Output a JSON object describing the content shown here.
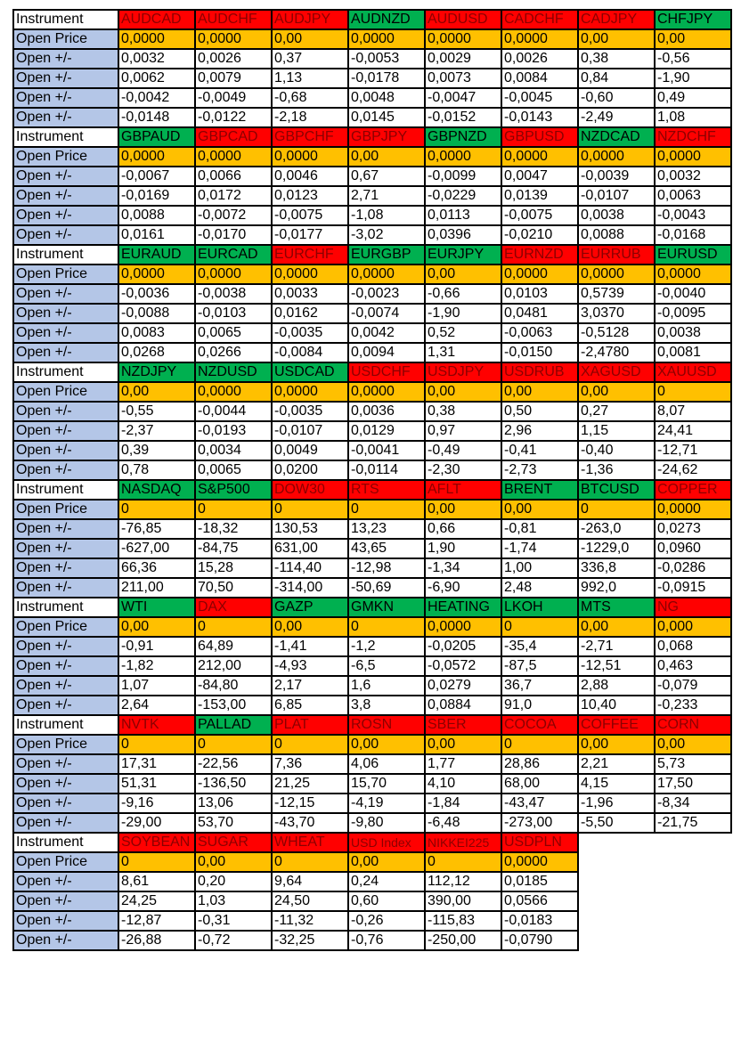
{
  "labels": {
    "instrument": "Instrument",
    "open_price": "Open Price",
    "open_change": "Open +/-"
  },
  "colors": {
    "green": "#00b050",
    "red": "#ff0000",
    "open_price_bg": "#ffc000",
    "label_bg": "#b4c6e7"
  },
  "sections": [
    {
      "instruments": [
        {
          "name": "AUDCAD",
          "trend": "red"
        },
        {
          "name": "AUDCHF",
          "trend": "red"
        },
        {
          "name": "AUDJPY",
          "trend": "red"
        },
        {
          "name": "AUDNZD",
          "trend": "green"
        },
        {
          "name": "AUDUSD",
          "trend": "red"
        },
        {
          "name": "CADCHF",
          "trend": "red"
        },
        {
          "name": "CADJPY",
          "trend": "red"
        },
        {
          "name": "CHFJPY",
          "trend": "green"
        }
      ],
      "open_price": [
        "0,0000",
        "0,0000",
        "0,00",
        "0,0000",
        "0,0000",
        "0,0000",
        "0,00",
        "0,00"
      ],
      "changes": [
        [
          "0,0032",
          "0,0026",
          "0,37",
          "-0,0053",
          "0,0029",
          "0,0026",
          "0,38",
          "-0,56"
        ],
        [
          "0,0062",
          "0,0079",
          "1,13",
          "-0,0178",
          "0,0073",
          "0,0084",
          "0,84",
          "-1,90"
        ],
        [
          "-0,0042",
          "-0,0049",
          "-0,68",
          "0,0048",
          "-0,0047",
          "-0,0045",
          "-0,60",
          "0,49"
        ],
        [
          "-0,0148",
          "-0,0122",
          "-2,18",
          "0,0145",
          "-0,0152",
          "-0,0143",
          "-2,49",
          "1,08"
        ]
      ]
    },
    {
      "instruments": [
        {
          "name": "GBPAUD",
          "trend": "green"
        },
        {
          "name": "GBPCAD",
          "trend": "red"
        },
        {
          "name": "GBPCHF",
          "trend": "red"
        },
        {
          "name": "GBPJPY",
          "trend": "red"
        },
        {
          "name": "GBPNZD",
          "trend": "green"
        },
        {
          "name": "GBPUSD",
          "trend": "red"
        },
        {
          "name": "NZDCAD",
          "trend": "green"
        },
        {
          "name": "NZDCHF",
          "trend": "red"
        }
      ],
      "open_price": [
        "0,0000",
        "0,0000",
        "0,0000",
        "0,00",
        "0,0000",
        "0,0000",
        "0,0000",
        "0,0000"
      ],
      "changes": [
        [
          "-0,0067",
          "0,0066",
          "0,0046",
          "0,67",
          "-0,0099",
          "0,0047",
          "-0,0039",
          "0,0032"
        ],
        [
          "-0,0169",
          "0,0172",
          "0,0123",
          "2,71",
          "-0,0229",
          "0,0139",
          "-0,0107",
          "0,0063"
        ],
        [
          "0,0088",
          "-0,0072",
          "-0,0075",
          "-1,08",
          "0,0113",
          "-0,0075",
          "0,0038",
          "-0,0043"
        ],
        [
          "0,0161",
          "-0,0170",
          "-0,0177",
          "-3,02",
          "0,0396",
          "-0,0210",
          "0,0088",
          "-0,0168"
        ]
      ]
    },
    {
      "instruments": [
        {
          "name": "EURAUD",
          "trend": "green"
        },
        {
          "name": "EURCAD",
          "trend": "green"
        },
        {
          "name": "EURCHF",
          "trend": "red"
        },
        {
          "name": "EURGBP",
          "trend": "green"
        },
        {
          "name": "EURJPY",
          "trend": "green"
        },
        {
          "name": "EURNZD",
          "trend": "red"
        },
        {
          "name": "EURRUB",
          "trend": "red"
        },
        {
          "name": "EURUSD",
          "trend": "green"
        }
      ],
      "open_price": [
        "0,0000",
        "0,0000",
        "0,0000",
        "0,0000",
        "0,00",
        "0,0000",
        "0,0000",
        "0,0000"
      ],
      "changes": [
        [
          "-0,0036",
          "-0,0038",
          "0,0033",
          "-0,0023",
          "-0,66",
          "0,0103",
          "0,5739",
          "-0,0040"
        ],
        [
          "-0,0088",
          "-0,0103",
          "0,0162",
          "-0,0074",
          "-1,90",
          "0,0481",
          "3,0370",
          "-0,0095"
        ],
        [
          "0,0083",
          "0,0065",
          "-0,0035",
          "0,0042",
          "0,52",
          "-0,0063",
          "-0,5128",
          "0,0038"
        ],
        [
          "0,0268",
          "0,0266",
          "-0,0084",
          "0,0094",
          "1,31",
          "-0,0150",
          "-2,4780",
          "0,0081"
        ]
      ]
    },
    {
      "instruments": [
        {
          "name": "NZDJPY",
          "trend": "green"
        },
        {
          "name": "NZDUSD",
          "trend": "green"
        },
        {
          "name": "USDCAD",
          "trend": "green"
        },
        {
          "name": "USDCHF",
          "trend": "red"
        },
        {
          "name": "USDJPY",
          "trend": "red"
        },
        {
          "name": "USDRUB",
          "trend": "red"
        },
        {
          "name": "XAGUSD",
          "trend": "red"
        },
        {
          "name": "XAUUSD",
          "trend": "red"
        }
      ],
      "open_price": [
        "0,00",
        "0,0000",
        "0,0000",
        "0,0000",
        "0,00",
        "0,00",
        "0,00",
        "0"
      ],
      "changes": [
        [
          "-0,55",
          "-0,0044",
          "-0,0035",
          "0,0036",
          "0,38",
          "0,50",
          "0,27",
          "8,07"
        ],
        [
          "-2,37",
          "-0,0193",
          "-0,0107",
          "0,0129",
          "0,97",
          "2,96",
          "1,15",
          "24,41"
        ],
        [
          "0,39",
          "0,0034",
          "0,0049",
          "-0,0041",
          "-0,49",
          "-0,41",
          "-0,40",
          "-12,71"
        ],
        [
          "0,78",
          "0,0065",
          "0,0200",
          "-0,0114",
          "-2,30",
          "-2,73",
          "-1,36",
          "-24,62"
        ]
      ]
    },
    {
      "instruments": [
        {
          "name": "NASDAQ",
          "trend": "green"
        },
        {
          "name": "S&P500",
          "trend": "green"
        },
        {
          "name": "DOW30",
          "trend": "red"
        },
        {
          "name": "RTS",
          "trend": "red"
        },
        {
          "name": "AFLT",
          "trend": "red"
        },
        {
          "name": "BRENT",
          "trend": "green"
        },
        {
          "name": "BTCUSD",
          "trend": "green"
        },
        {
          "name": "COPPER",
          "trend": "red"
        }
      ],
      "open_price": [
        "0",
        "0",
        "0",
        "0",
        "0,00",
        "0,00",
        "0",
        "0,0000"
      ],
      "changes": [
        [
          "-76,85",
          "-18,32",
          "130,53",
          "13,23",
          "0,66",
          "-0,81",
          "-263,0",
          "0,0273"
        ],
        [
          "-627,00",
          "-84,75",
          "631,00",
          "43,65",
          "1,90",
          "-1,74",
          "-1229,0",
          "0,0960"
        ],
        [
          "66,36",
          "15,28",
          "-114,40",
          "-12,98",
          "-1,34",
          "1,00",
          "336,8",
          "-0,0286"
        ],
        [
          "211,00",
          "70,50",
          "-314,00",
          "-50,69",
          "-6,90",
          "2,48",
          "992,0",
          "-0,0915"
        ]
      ]
    },
    {
      "instruments": [
        {
          "name": "WTI",
          "trend": "green"
        },
        {
          "name": "DAX",
          "trend": "red"
        },
        {
          "name": "GAZP",
          "trend": "green"
        },
        {
          "name": "GMKN",
          "trend": "green"
        },
        {
          "name": "HEATING",
          "trend": "green"
        },
        {
          "name": "LKOH",
          "trend": "green"
        },
        {
          "name": "MTS",
          "trend": "green"
        },
        {
          "name": "NG",
          "trend": "red"
        }
      ],
      "open_price": [
        "0,00",
        "0",
        "0,00",
        "0",
        "0,0000",
        "0",
        "0,00",
        "0,000"
      ],
      "changes": [
        [
          "-0,91",
          "64,89",
          "-1,41",
          "-1,2",
          "-0,0205",
          "-35,4",
          "-2,71",
          "0,068"
        ],
        [
          "-1,82",
          "212,00",
          "-4,93",
          "-6,5",
          "-0,0572",
          "-87,5",
          "-12,51",
          "0,463"
        ],
        [
          "1,07",
          "-84,80",
          "2,17",
          "1,6",
          "0,0279",
          "36,7",
          "2,88",
          "-0,079"
        ],
        [
          "2,64",
          "-153,00",
          "6,85",
          "3,8",
          "0,0884",
          "91,0",
          "10,40",
          "-0,233"
        ]
      ]
    },
    {
      "instruments": [
        {
          "name": "NVTK",
          "trend": "red"
        },
        {
          "name": "PALLAD",
          "trend": "green"
        },
        {
          "name": "PLAT",
          "trend": "red"
        },
        {
          "name": "ROSN",
          "trend": "red"
        },
        {
          "name": "SBER",
          "trend": "red"
        },
        {
          "name": "COCOA",
          "trend": "red"
        },
        {
          "name": "COFFEE",
          "trend": "red"
        },
        {
          "name": "CORN",
          "trend": "red"
        }
      ],
      "open_price": [
        "0",
        "0",
        "0",
        "0,00",
        "0,00",
        "0",
        "0,00",
        "0,00"
      ],
      "changes": [
        [
          "17,31",
          "-22,56",
          "7,36",
          "4,06",
          "1,77",
          "28,86",
          "2,21",
          "5,73"
        ],
        [
          "51,31",
          "-136,50",
          "21,25",
          "15,70",
          "4,10",
          "68,00",
          "4,15",
          "17,50"
        ],
        [
          "-9,16",
          "13,06",
          "-12,15",
          "-4,19",
          "-1,84",
          "-43,47",
          "-1,96",
          "-8,34"
        ],
        [
          "-29,00",
          "53,70",
          "-43,70",
          "-9,80",
          "-6,48",
          "-273,00",
          "-5,50",
          "-21,75"
        ]
      ]
    },
    {
      "instruments": [
        {
          "name": "SOYBEAN",
          "trend": "red"
        },
        {
          "name": "SUGAR",
          "trend": "red"
        },
        {
          "name": "WHEAT",
          "trend": "red"
        },
        {
          "name": "USD Index",
          "trend": "red"
        },
        {
          "name": "NIKKEI225",
          "trend": "red"
        },
        {
          "name": "USDPLN",
          "trend": "red"
        }
      ],
      "open_price": [
        "0",
        "0,00",
        "0",
        "0,00",
        "0",
        "0,0000"
      ],
      "changes": [
        [
          "8,61",
          "0,20",
          "9,64",
          "0,24",
          "112,12",
          "0,0185"
        ],
        [
          "24,25",
          "1,03",
          "24,50",
          "0,60",
          "390,00",
          "0,0566"
        ],
        [
          "-12,87",
          "-0,31",
          "-11,32",
          "-0,26",
          "-115,83",
          "-0,0183"
        ],
        [
          "-26,88",
          "-0,72",
          "-32,25",
          "-0,76",
          "-250,00",
          "-0,0790"
        ]
      ]
    }
  ]
}
